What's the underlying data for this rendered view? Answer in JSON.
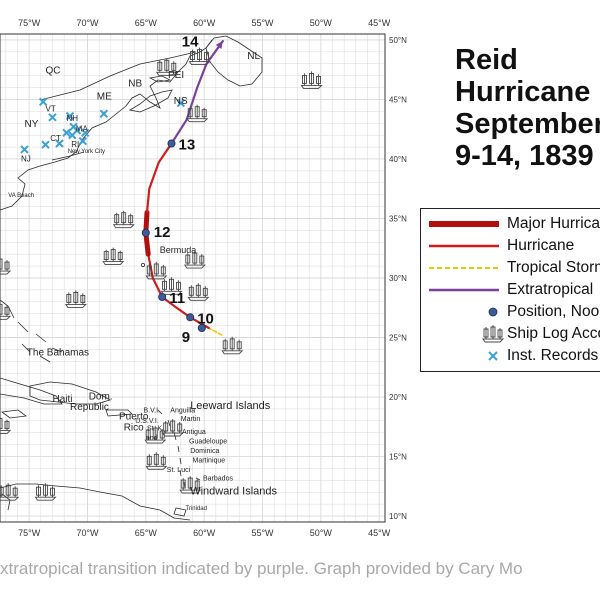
{
  "map": {
    "lon_range": [
      -77.5,
      -44.5
    ],
    "lat_range": [
      9.5,
      50.5
    ],
    "lon_ticks": [
      {
        "value": -75,
        "label": "75°W"
      },
      {
        "value": -70,
        "label": "70°W"
      },
      {
        "value": -65,
        "label": "65°W"
      },
      {
        "value": -60,
        "label": "60°W"
      },
      {
        "value": -55,
        "label": "55°W"
      },
      {
        "value": -50,
        "label": "50°W"
      },
      {
        "value": -45,
        "label": "45°W"
      }
    ],
    "lat_ticks": [
      {
        "value": 50,
        "label": "50°N"
      },
      {
        "value": 45,
        "label": "45°N"
      },
      {
        "value": 40,
        "label": "40°N"
      },
      {
        "value": 35,
        "label": "35°N"
      },
      {
        "value": 30,
        "label": "30°N"
      },
      {
        "value": 25,
        "label": "25°N"
      },
      {
        "value": 20,
        "label": "20°N"
      },
      {
        "value": 15,
        "label": "15°N"
      },
      {
        "value": 10,
        "label": "10°N"
      }
    ],
    "grid": true,
    "grid_color": "#d9d9d9",
    "land_color": "#ffffff",
    "sea_color": "#ffffff"
  },
  "track": {
    "segments": [
      {
        "kind": "tropical_storm",
        "color": "#f2c400",
        "points": [
          [
            -58.5,
            25.2
          ],
          [
            -59.6,
            25.8
          ]
        ]
      },
      {
        "kind": "hurricane",
        "color": "#d01c1c",
        "points": [
          [
            -59.6,
            25.8
          ],
          [
            -61.2,
            26.7
          ],
          [
            -62.5,
            27.6
          ],
          [
            -63.6,
            28.4
          ],
          [
            -64.4,
            30.0
          ],
          [
            -64.8,
            32.0
          ]
        ]
      },
      {
        "kind": "major_hurricane",
        "color": "#b01010",
        "points": [
          [
            -64.8,
            32.0
          ],
          [
            -65.0,
            33.8
          ],
          [
            -64.9,
            35.5
          ]
        ]
      },
      {
        "kind": "hurricane",
        "color": "#d01c1c",
        "points": [
          [
            -64.9,
            35.5
          ],
          [
            -64.7,
            37.5
          ],
          [
            -63.9,
            39.7
          ],
          [
            -62.8,
            41.3
          ]
        ]
      },
      {
        "kind": "extratropical",
        "color": "#7b3fa0",
        "points": [
          [
            -62.8,
            41.3
          ],
          [
            -61.5,
            43.3
          ],
          [
            -60.6,
            46.0
          ],
          [
            -59.8,
            48.0
          ],
          [
            -58.4,
            49.9
          ]
        ]
      }
    ],
    "positions": [
      {
        "label": "9",
        "lon": -60.2,
        "lat": 25.8
      },
      {
        "label": "10",
        "lon": -61.2,
        "lat": 26.7
      },
      {
        "label": "11",
        "lon": -63.6,
        "lat": 28.4
      },
      {
        "label": "12",
        "lon": -65.0,
        "lat": 33.8
      },
      {
        "label": "13",
        "lon": -62.8,
        "lat": 41.3
      },
      {
        "label": "14",
        "lon": -59.0,
        "lat": 49.6
      }
    ],
    "position_color": "#3b5b9a"
  },
  "ships": [
    {
      "lon": -60.4,
      "lat": 48.6
    },
    {
      "lon": -63.2,
      "lat": 47.7
    },
    {
      "lon": -50.8,
      "lat": 46.6
    },
    {
      "lon": -60.6,
      "lat": 43.8
    },
    {
      "lon": -66.9,
      "lat": 34.9
    },
    {
      "lon": -67.8,
      "lat": 31.8
    },
    {
      "lon": -60.8,
      "lat": 31.5
    },
    {
      "lon": -64.1,
      "lat": 30.6
    },
    {
      "lon": -62.8,
      "lat": 29.3
    },
    {
      "lon": -60.5,
      "lat": 28.8
    },
    {
      "lon": -71.0,
      "lat": 28.2
    },
    {
      "lon": -77.5,
      "lat": 27.2
    },
    {
      "lon": -57.6,
      "lat": 24.3
    },
    {
      "lon": -62.7,
      "lat": 17.4
    },
    {
      "lon": -64.2,
      "lat": 16.8
    },
    {
      "lon": -64.1,
      "lat": 14.6
    },
    {
      "lon": -61.2,
      "lat": 12.6
    },
    {
      "lon": -76.8,
      "lat": 12.0
    },
    {
      "lon": -73.6,
      "lat": 12.0
    },
    {
      "lon": -77.5,
      "lat": 17.6
    },
    {
      "lon": -77.5,
      "lat": 31.0
    }
  ],
  "ship_color": "#444444",
  "inst_records": [
    {
      "lon": -73.8,
      "lat": 44.8
    },
    {
      "lon": -73.0,
      "lat": 43.5
    },
    {
      "lon": -71.5,
      "lat": 43.6
    },
    {
      "lon": -71.2,
      "lat": 42.7
    },
    {
      "lon": -71.8,
      "lat": 42.2
    },
    {
      "lon": -71.3,
      "lat": 42.0
    },
    {
      "lon": -70.4,
      "lat": 41.5
    },
    {
      "lon": -72.4,
      "lat": 41.3
    },
    {
      "lon": -70.9,
      "lat": 42.4
    },
    {
      "lon": -73.6,
      "lat": 41.2
    },
    {
      "lon": -68.6,
      "lat": 43.8
    },
    {
      "lon": -62.0,
      "lat": 44.7
    },
    {
      "lon": -75.4,
      "lat": 40.8
    },
    {
      "lon": -70.2,
      "lat": 42.2
    }
  ],
  "inst_color": "#3ba0d8",
  "places": [
    {
      "label": "QC",
      "lon": -73.6,
      "lat": 47.2,
      "size": 10
    },
    {
      "label": "ME",
      "lon": -69.2,
      "lat": 45.0,
      "size": 10
    },
    {
      "label": "NB",
      "lon": -66.5,
      "lat": 46.1,
      "size": 10
    },
    {
      "label": "PEI",
      "lon": -63.1,
      "lat": 46.8,
      "size": 10
    },
    {
      "label": "NL",
      "lon": -56.3,
      "lat": 48.4,
      "size": 10
    },
    {
      "label": "NS",
      "lon": -62.6,
      "lat": 44.6,
      "size": 10
    },
    {
      "label": "NY",
      "lon": -75.4,
      "lat": 42.7,
      "size": 10
    },
    {
      "label": "VT",
      "lon": -73.6,
      "lat": 44.0,
      "size": 8
    },
    {
      "label": "NH",
      "lon": -71.8,
      "lat": 43.2,
      "size": 8
    },
    {
      "label": "MA",
      "lon": -71.0,
      "lat": 42.3,
      "size": 8
    },
    {
      "label": "CT",
      "lon": -73.2,
      "lat": 41.5,
      "size": 8
    },
    {
      "label": "RI",
      "lon": -71.4,
      "lat": 41.0,
      "size": 8
    },
    {
      "label": "NJ",
      "lon": -75.7,
      "lat": 39.8,
      "size": 8
    },
    {
      "label": "New York City",
      "lon": -71.7,
      "lat": 40.5,
      "size": 6
    },
    {
      "label": "VA Beach",
      "lon": -76.8,
      "lat": 36.8,
      "size": 6
    },
    {
      "label": "Bermuda",
      "lon": -63.8,
      "lat": 32.1,
      "size": 9
    },
    {
      "label": "The Bahamas",
      "lon": -75.2,
      "lat": 23.5,
      "size": 10
    },
    {
      "label": "Haiti",
      "lon": -73.0,
      "lat": 19.6,
      "size": 10
    },
    {
      "label": "Dom.",
      "lon": -69.9,
      "lat": 19.8,
      "size": 10
    },
    {
      "label": "Republic",
      "lon": -71.5,
      "lat": 18.9,
      "size": 10
    },
    {
      "label": "Puerto",
      "lon": -67.3,
      "lat": 18.1,
      "size": 10
    },
    {
      "label": "Rico",
      "lon": -66.9,
      "lat": 17.2,
      "size": 10
    },
    {
      "label": "B.V.I.",
      "lon": -65.2,
      "lat": 18.7,
      "size": 7
    },
    {
      "label": "U.S.V.I.",
      "lon": -65.9,
      "lat": 17.8,
      "size": 7
    },
    {
      "label": "St. K",
      "lon": -64.9,
      "lat": 17.2,
      "size": 7
    },
    {
      "label": "and",
      "lon": -65.0,
      "lat": 16.4,
      "size": 7
    },
    {
      "label": "Anguilla",
      "lon": -62.9,
      "lat": 18.7,
      "size": 7
    },
    {
      "label": "Martin",
      "lon": -62.0,
      "lat": 18.0,
      "size": 7
    },
    {
      "label": "Antigua",
      "lon": -61.9,
      "lat": 16.9,
      "size": 7
    },
    {
      "label": "Guadeloupe",
      "lon": -61.3,
      "lat": 16.1,
      "size": 7
    },
    {
      "label": "Dominica",
      "lon": -61.2,
      "lat": 15.3,
      "size": 7
    },
    {
      "label": "Martinique",
      "lon": -61.0,
      "lat": 14.5,
      "size": 7
    },
    {
      "label": "St. Luci",
      "lon": -63.2,
      "lat": 13.7,
      "size": 7
    },
    {
      "label": "Barbados",
      "lon": -60.1,
      "lat": 13.0,
      "size": 7
    },
    {
      "label": "Trinidad",
      "lon": -61.6,
      "lat": 10.5,
      "size": 6
    },
    {
      "label": "Leeward Islands",
      "lon": -61.2,
      "lat": 19.0,
      "size": 11
    },
    {
      "label": "Windward Islands",
      "lon": -61.2,
      "lat": 11.8,
      "size": 11
    }
  ],
  "title": {
    "lines": [
      "Reid",
      "Hurricane",
      "September",
      "9-14, 1839"
    ]
  },
  "legend": {
    "items": [
      {
        "kind": "major_hurricane",
        "label": "Major Hurricane"
      },
      {
        "kind": "hurricane",
        "label": "Hurricane"
      },
      {
        "kind": "tropical_storm",
        "label": "Tropical Storm"
      },
      {
        "kind": "extratropical",
        "label": "Extratropical"
      },
      {
        "kind": "position",
        "label": "Position, Noon"
      },
      {
        "kind": "ship",
        "label": "Ship Log Accounts"
      },
      {
        "kind": "inst",
        "label": "Inst. Records"
      }
    ]
  },
  "caption": "xtratropical transition indicated by purple. Graph provided by Cary Mo"
}
